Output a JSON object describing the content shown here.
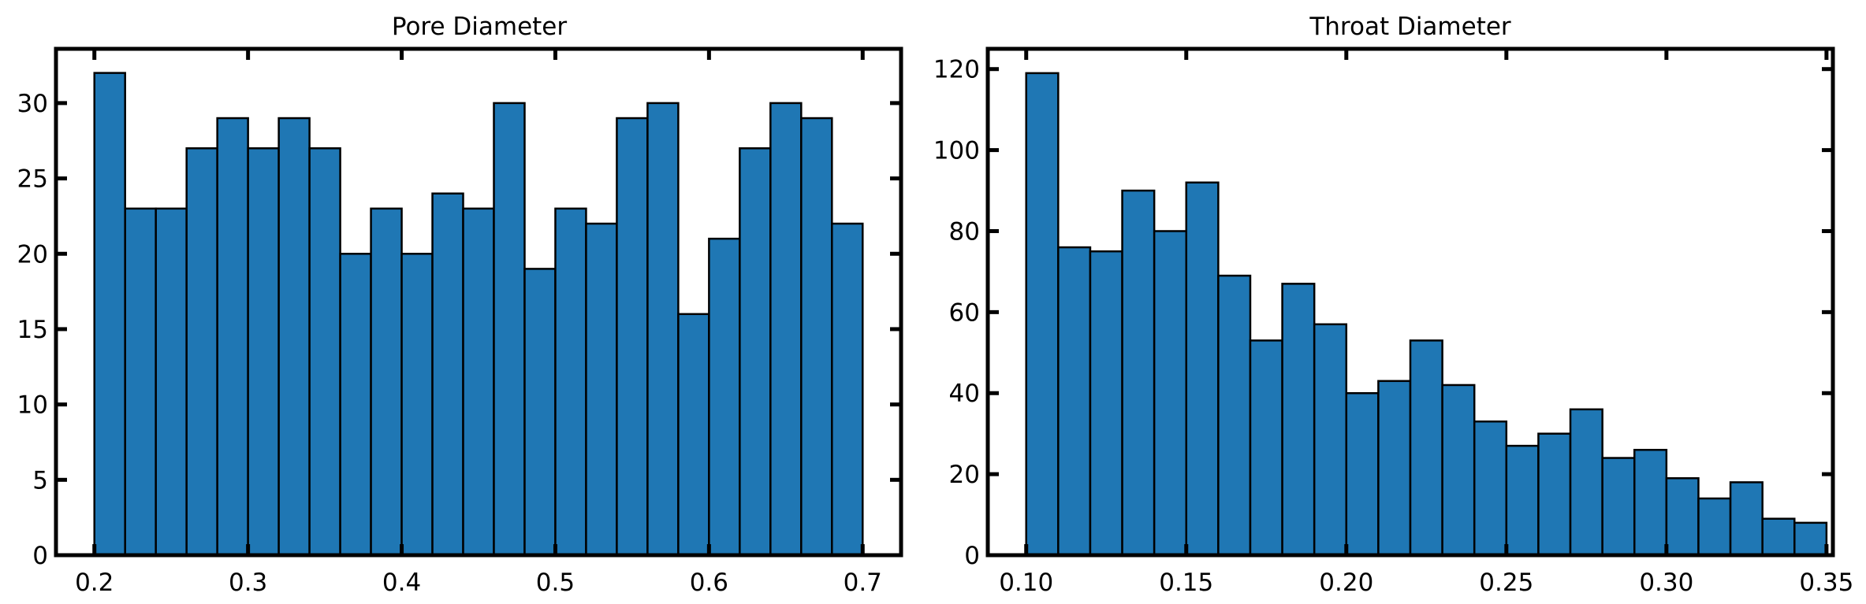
{
  "chart_data": [
    {
      "type": "bar",
      "title": "Pore Diameter",
      "xlabel": "",
      "ylabel": "",
      "bin_edges": [
        0.2,
        0.22,
        0.24,
        0.26,
        0.28,
        0.3,
        0.32,
        0.34,
        0.36,
        0.38,
        0.4,
        0.42,
        0.44,
        0.46,
        0.48,
        0.5,
        0.52,
        0.54,
        0.56,
        0.58,
        0.6,
        0.62,
        0.64,
        0.66,
        0.68,
        0.7
      ],
      "values": [
        32,
        23,
        23,
        27,
        29,
        27,
        29,
        27,
        20,
        23,
        20,
        24,
        23,
        30,
        19,
        23,
        22,
        29,
        30,
        16,
        21,
        27,
        30,
        29,
        22
      ],
      "xlim": [
        0.175,
        0.725
      ],
      "ylim": [
        0,
        33.6
      ],
      "xticks": [
        0.2,
        0.3,
        0.4,
        0.5,
        0.6,
        0.7
      ],
      "xtick_labels": [
        "0.2",
        "0.3",
        "0.4",
        "0.5",
        "0.6",
        "0.7"
      ],
      "yticks": [
        0,
        5,
        10,
        15,
        20,
        25,
        30
      ],
      "ytick_labels": [
        "0",
        "5",
        "10",
        "15",
        "20",
        "25",
        "30"
      ],
      "bar_color": "#1f77b4",
      "edge_color": "#000000",
      "grid": false
    },
    {
      "type": "bar",
      "title": "Throat Diameter",
      "xlabel": "",
      "ylabel": "",
      "bin_edges": [
        0.1,
        0.11,
        0.12,
        0.13,
        0.14,
        0.15,
        0.16,
        0.17,
        0.18,
        0.19,
        0.2,
        0.21,
        0.22,
        0.23,
        0.24,
        0.25,
        0.26,
        0.27,
        0.28,
        0.29,
        0.3,
        0.31,
        0.32,
        0.33,
        0.34,
        0.35
      ],
      "values": [
        119,
        76,
        75,
        90,
        80,
        92,
        69,
        53,
        67,
        57,
        40,
        43,
        53,
        42,
        33,
        27,
        30,
        36,
        24,
        26,
        19,
        14,
        18,
        9,
        8
      ],
      "xlim": [
        0.088,
        0.352
      ],
      "ylim": [
        0,
        125
      ],
      "xticks": [
        0.1,
        0.15,
        0.2,
        0.25,
        0.3,
        0.35
      ],
      "xtick_labels": [
        "0.10",
        "0.15",
        "0.20",
        "0.25",
        "0.30",
        "0.35"
      ],
      "yticks": [
        0,
        20,
        40,
        60,
        80,
        100,
        120
      ],
      "ytick_labels": [
        "0",
        "20",
        "40",
        "60",
        "80",
        "100",
        "120"
      ],
      "bar_color": "#1f77b4",
      "edge_color": "#000000",
      "grid": false
    }
  ]
}
